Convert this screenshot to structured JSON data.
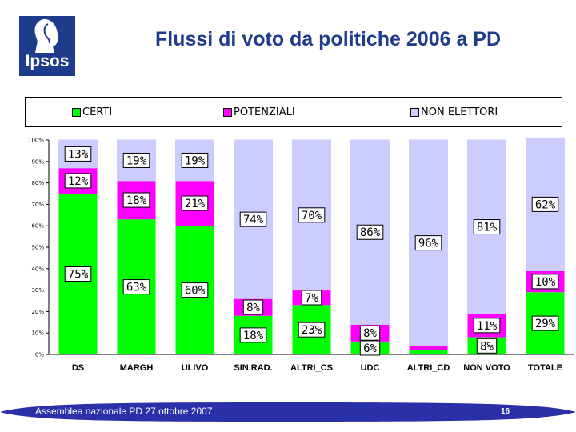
{
  "logo": {
    "text": "Ipsos"
  },
  "title": "Flussi di voto da politiche 2006 a PD",
  "footer": {
    "text": "Assemblea nazionale PD 27 ottobre 2007",
    "page": "16"
  },
  "colors": {
    "certi": "#00ff00",
    "potenziali": "#ff00ff",
    "non_elettori": "#ccccff",
    "brand": "#1f3c8c"
  },
  "chart_data": {
    "type": "bar",
    "stacked": true,
    "categories": [
      "DS",
      "MARGH",
      "ULIVO",
      "SIN.RAD.",
      "ALTRI_CS",
      "UDC",
      "ALTRI_CD",
      "NON VOTO",
      "TOTALE"
    ],
    "series": [
      {
        "name": "CERTI",
        "values": [
          75,
          63,
          60,
          18,
          23,
          6,
          2,
          8,
          29
        ],
        "labels": [
          "75%",
          "63%",
          "60%",
          "18%",
          "23%",
          "6%",
          "",
          "8%",
          "29%"
        ]
      },
      {
        "name": "POTENZIALI",
        "values": [
          12,
          18,
          21,
          8,
          7,
          8,
          2,
          11,
          10
        ],
        "labels": [
          "12%",
          "18%",
          "21%",
          "8%",
          "7%",
          "8%",
          "",
          "11%",
          "10%"
        ]
      },
      {
        "name": "NON ELETTORI",
        "values": [
          13,
          19,
          19,
          74,
          70,
          86,
          96,
          81,
          62
        ],
        "labels": [
          "13%",
          "19%",
          "19%",
          "74%",
          "70%",
          "86%",
          "96%",
          "81%",
          "62%"
        ]
      }
    ],
    "yticks": [
      "0%",
      "10%",
      "20%",
      "30%",
      "40%",
      "50%",
      "60%",
      "70%",
      "80%",
      "90%",
      "100%"
    ],
    "ylim": [
      0,
      100
    ],
    "legend": "top"
  }
}
